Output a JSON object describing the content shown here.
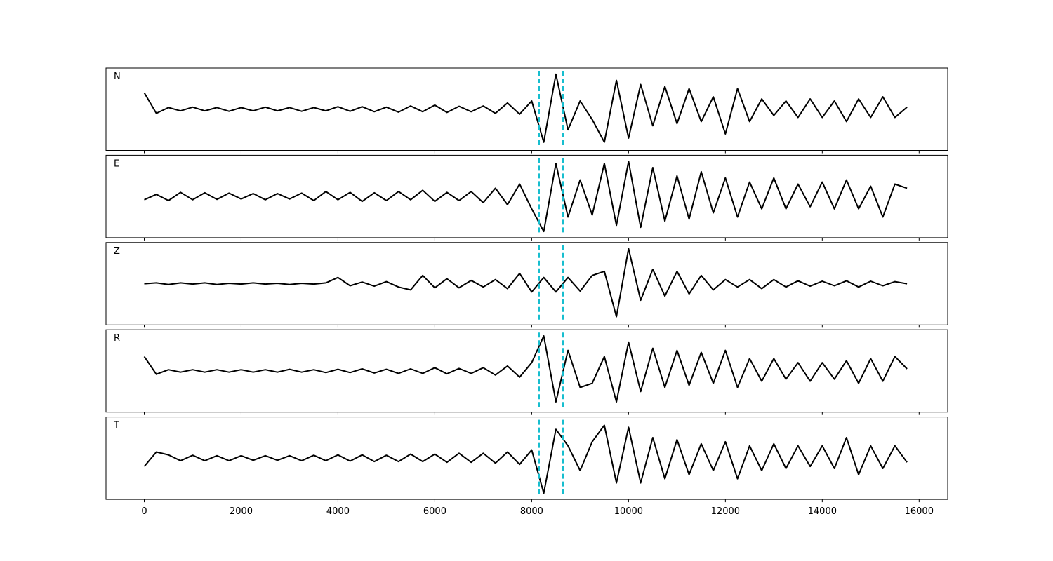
{
  "chart_data": [
    {
      "type": "line",
      "label": "N",
      "color": "#000000",
      "vlines": [
        8150,
        8650
      ],
      "vline_color": "#17becf",
      "x": [
        0,
        250,
        500,
        750,
        1000,
        1250,
        1500,
        1750,
        2000,
        2250,
        2500,
        2750,
        3000,
        3250,
        3500,
        3750,
        4000,
        4250,
        4500,
        4750,
        5000,
        5250,
        5500,
        5750,
        6000,
        6250,
        6500,
        6750,
        7000,
        7250,
        7500,
        7750,
        8000,
        8250,
        8500,
        8750,
        9000,
        9250,
        9500,
        9750,
        10000,
        10250,
        10500,
        10750,
        11000,
        11250,
        11500,
        11750,
        12000,
        12250,
        12500,
        12750,
        13000,
        13250,
        13500,
        13750,
        14000,
        14250,
        14500,
        14750,
        15000,
        15250,
        15500,
        15750
      ],
      "values": [
        0.4,
        -0.1,
        0.04,
        -0.04,
        0.05,
        -0.04,
        0.04,
        -0.05,
        0.04,
        -0.04,
        0.05,
        -0.04,
        0.04,
        -0.05,
        0.04,
        -0.04,
        0.06,
        -0.05,
        0.06,
        -0.06,
        0.05,
        -0.07,
        0.08,
        -0.06,
        0.1,
        -0.08,
        0.07,
        -0.06,
        0.08,
        -0.1,
        0.15,
        -0.12,
        0.2,
        -0.8,
        0.85,
        -0.5,
        0.2,
        -0.25,
        -0.8,
        0.7,
        -0.7,
        0.6,
        -0.4,
        0.55,
        -0.35,
        0.5,
        -0.3,
        0.3,
        -0.6,
        0.5,
        -0.3,
        0.25,
        -0.15,
        0.2,
        -0.2,
        0.25,
        -0.2,
        0.2,
        -0.3,
        0.25,
        -0.2,
        0.3,
        -0.2,
        0.05
      ],
      "xlim": [
        -790,
        16590
      ],
      "ylim": [
        -1,
        1
      ],
      "xticks": [
        0,
        2000,
        4000,
        6000,
        8000,
        10000,
        12000,
        14000,
        16000
      ]
    },
    {
      "type": "line",
      "label": "E",
      "color": "#000000",
      "vlines": [
        8150,
        8650
      ],
      "vline_color": "#17becf",
      "x": [
        0,
        250,
        500,
        750,
        1000,
        1250,
        1500,
        1750,
        2000,
        2250,
        2500,
        2750,
        3000,
        3250,
        3500,
        3750,
        4000,
        4250,
        4500,
        4750,
        5000,
        5250,
        5500,
        5750,
        6000,
        6250,
        6500,
        6750,
        7000,
        7250,
        7500,
        7750,
        8000,
        8250,
        8500,
        8750,
        9000,
        9250,
        9500,
        9750,
        10000,
        10250,
        10500,
        10750,
        11000,
        11250,
        11500,
        11750,
        12000,
        12250,
        12500,
        12750,
        13000,
        13250,
        13500,
        13750,
        14000,
        14250,
        14500,
        14750,
        15000,
        15250,
        15500,
        15750
      ],
      "values": [
        -0.08,
        0.05,
        -0.1,
        0.1,
        -0.08,
        0.09,
        -0.07,
        0.08,
        -0.06,
        0.07,
        -0.08,
        0.07,
        -0.06,
        0.08,
        -0.1,
        0.12,
        -0.08,
        0.1,
        -0.12,
        0.09,
        -0.1,
        0.12,
        -0.08,
        0.15,
        -0.12,
        0.1,
        -0.1,
        0.12,
        -0.15,
        0.2,
        -0.2,
        0.3,
        -0.3,
        -0.85,
        0.8,
        -0.5,
        0.4,
        -0.45,
        0.8,
        -0.7,
        0.85,
        -0.75,
        0.7,
        -0.6,
        0.5,
        -0.55,
        0.6,
        -0.4,
        0.45,
        -0.5,
        0.35,
        -0.3,
        0.45,
        -0.3,
        0.3,
        -0.25,
        0.35,
        -0.3,
        0.4,
        -0.3,
        0.25,
        -0.5,
        0.3,
        0.2
      ],
      "xlim": [
        -790,
        16590
      ],
      "ylim": [
        -1,
        1
      ],
      "xticks": [
        0,
        2000,
        4000,
        6000,
        8000,
        10000,
        12000,
        14000,
        16000
      ]
    },
    {
      "type": "line",
      "label": "Z",
      "color": "#000000",
      "vlines": [
        8150,
        8650
      ],
      "vline_color": "#17becf",
      "x": [
        0,
        250,
        500,
        750,
        1000,
        1250,
        1500,
        1750,
        2000,
        2250,
        2500,
        2750,
        3000,
        3250,
        3500,
        3750,
        4000,
        4250,
        4500,
        4750,
        5000,
        5250,
        5500,
        5750,
        6000,
        6250,
        6500,
        6750,
        7000,
        7250,
        7500,
        7750,
        8000,
        8250,
        8500,
        8750,
        9000,
        9250,
        9500,
        9750,
        10000,
        10250,
        10500,
        10750,
        11000,
        11250,
        11500,
        11750,
        12000,
        12250,
        12500,
        12750,
        13000,
        13250,
        13500,
        13750,
        14000,
        14250,
        14500,
        14750,
        15000,
        15250,
        15500,
        15750
      ],
      "values": [
        0,
        0.02,
        -0.02,
        0.02,
        -0.01,
        0.02,
        -0.02,
        0.01,
        -0.01,
        0.02,
        -0.01,
        0.01,
        -0.02,
        0.01,
        -0.01,
        0.02,
        0.15,
        -0.05,
        0.04,
        -0.06,
        0.05,
        -0.08,
        -0.15,
        0.2,
        -0.1,
        0.12,
        -0.1,
        0.08,
        -0.08,
        0.1,
        -0.12,
        0.25,
        -0.2,
        0.15,
        -0.2,
        0.15,
        -0.18,
        0.2,
        0.3,
        -0.8,
        0.85,
        -0.4,
        0.35,
        -0.3,
        0.3,
        -0.25,
        0.2,
        -0.15,
        0.1,
        -0.08,
        0.1,
        -0.12,
        0.1,
        -0.08,
        0.07,
        -0.06,
        0.06,
        -0.05,
        0.07,
        -0.08,
        0.06,
        -0.05,
        0.05,
        0
      ],
      "xlim": [
        -790,
        16590
      ],
      "ylim": [
        -1,
        1
      ],
      "xticks": [
        0,
        2000,
        4000,
        6000,
        8000,
        10000,
        12000,
        14000,
        16000
      ]
    },
    {
      "type": "line",
      "label": "R",
      "color": "#000000",
      "vlines": [
        8150,
        8650
      ],
      "vline_color": "#17becf",
      "x": [
        0,
        250,
        500,
        750,
        1000,
        1250,
        1500,
        1750,
        2000,
        2250,
        2500,
        2750,
        3000,
        3250,
        3500,
        3750,
        4000,
        4250,
        4500,
        4750,
        5000,
        5250,
        5500,
        5750,
        6000,
        6250,
        6500,
        6750,
        7000,
        7250,
        7500,
        7750,
        8000,
        8250,
        8500,
        8750,
        9000,
        9250,
        9500,
        9750,
        10000,
        10250,
        10500,
        10750,
        11000,
        11250,
        11500,
        11750,
        12000,
        12250,
        12500,
        12750,
        13000,
        13250,
        13500,
        13750,
        14000,
        14250,
        14500,
        14750,
        15000,
        15250,
        15500,
        15750
      ],
      "values": [
        0.35,
        -0.08,
        0.03,
        -0.03,
        0.03,
        -0.03,
        0.03,
        -0.03,
        0.03,
        -0.03,
        0.03,
        -0.03,
        0.04,
        -0.03,
        0.03,
        -0.04,
        0.04,
        -0.04,
        0.05,
        -0.05,
        0.04,
        -0.06,
        0.05,
        -0.06,
        0.08,
        -0.07,
        0.06,
        -0.06,
        0.08,
        -0.1,
        0.12,
        -0.15,
        0.2,
        0.85,
        -0.75,
        0.5,
        -0.4,
        -0.3,
        0.35,
        -0.75,
        0.7,
        -0.5,
        0.55,
        -0.4,
        0.5,
        -0.35,
        0.45,
        -0.3,
        0.5,
        -0.4,
        0.3,
        -0.25,
        0.3,
        -0.2,
        0.2,
        -0.25,
        0.2,
        -0.2,
        0.25,
        -0.3,
        0.3,
        -0.25,
        0.35,
        0.05
      ],
      "xlim": [
        -790,
        16590
      ],
      "ylim": [
        -1,
        1
      ],
      "xticks": [
        0,
        2000,
        4000,
        6000,
        8000,
        10000,
        12000,
        14000,
        16000
      ]
    },
    {
      "type": "line",
      "label": "T",
      "color": "#000000",
      "vlines": [
        8150,
        8650
      ],
      "vline_color": "#17becf",
      "x": [
        0,
        250,
        500,
        750,
        1000,
        1250,
        1500,
        1750,
        2000,
        2250,
        2500,
        2750,
        3000,
        3250,
        3500,
        3750,
        4000,
        4250,
        4500,
        4750,
        5000,
        5250,
        5500,
        5750,
        6000,
        6250,
        6500,
        6750,
        7000,
        7250,
        7500,
        7750,
        8000,
        8250,
        8500,
        8750,
        9000,
        9250,
        9500,
        9750,
        10000,
        10250,
        10500,
        10750,
        11000,
        11250,
        11500,
        11750,
        12000,
        12250,
        12500,
        12750,
        13000,
        13250,
        13500,
        13750,
        14000,
        14250,
        14500,
        14750,
        15000,
        15250,
        15500,
        15750
      ],
      "values": [
        -0.2,
        0.15,
        0.08,
        -0.06,
        0.07,
        -0.06,
        0.06,
        -0.06,
        0.06,
        -0.05,
        0.06,
        -0.05,
        0.06,
        -0.06,
        0.07,
        -0.06,
        0.08,
        -0.07,
        0.08,
        -0.08,
        0.07,
        -0.08,
        0.1,
        -0.08,
        0.1,
        -0.1,
        0.12,
        -0.1,
        0.12,
        -0.12,
        0.15,
        -0.15,
        0.2,
        -0.85,
        0.7,
        0.3,
        -0.3,
        0.4,
        0.8,
        -0.6,
        0.75,
        -0.6,
        0.5,
        -0.5,
        0.45,
        -0.4,
        0.35,
        -0.3,
        0.4,
        -0.5,
        0.3,
        -0.3,
        0.35,
        -0.25,
        0.3,
        -0.2,
        0.3,
        -0.25,
        0.5,
        -0.4,
        0.3,
        -0.25,
        0.3,
        -0.1
      ],
      "xlim": [
        -790,
        16590
      ],
      "ylim": [
        -1,
        1
      ],
      "xticks": [
        0,
        2000,
        4000,
        6000,
        8000,
        10000,
        12000,
        14000,
        16000
      ]
    }
  ]
}
